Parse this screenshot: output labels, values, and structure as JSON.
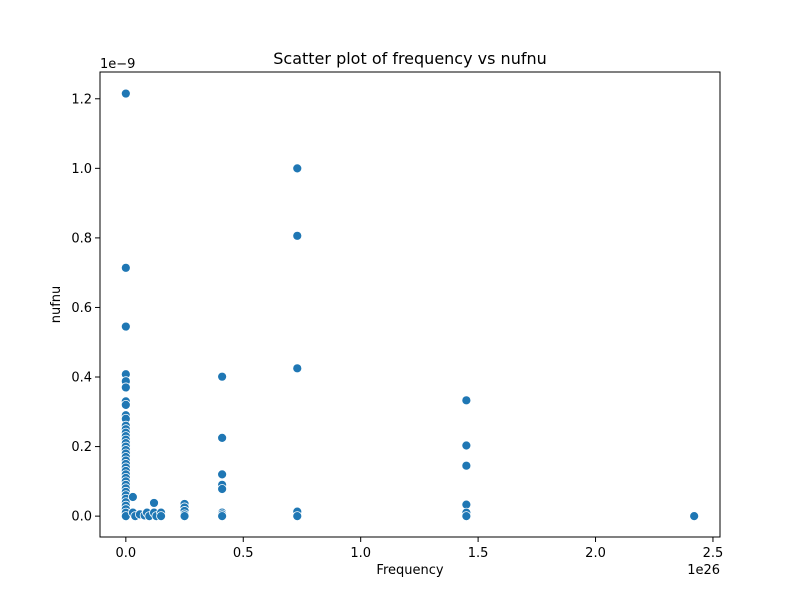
{
  "chart_data": {
    "type": "scatter",
    "title": "Scatter plot of frequency vs nufnu",
    "xlabel": "Frequency",
    "ylabel": "nufnu",
    "x_offset_text": "1e26",
    "y_offset_text": "1e−9",
    "x_scale_exponent": 26,
    "y_scale_exponent": -9,
    "xlim": [
      -0.11,
      2.53
    ],
    "ylim": [
      -0.06,
      1.277
    ],
    "x_ticks": [
      0.0,
      0.5,
      1.0,
      1.5,
      2.0,
      2.5
    ],
    "x_tick_labels": [
      "0.0",
      "0.5",
      "1.0",
      "1.5",
      "2.0",
      "2.5"
    ],
    "y_ticks": [
      0.0,
      0.2,
      0.4,
      0.6,
      0.8,
      1.0,
      1.2
    ],
    "y_tick_labels": [
      "0.0",
      "0.2",
      "0.4",
      "0.6",
      "0.8",
      "1.0",
      "1.2"
    ],
    "grid": false,
    "legend": "none",
    "marker_color": "#1f77b4",
    "marker_edge_color": "#ffffff",
    "points": [
      {
        "x": 0.0,
        "y": 1.215
      },
      {
        "x": 0.0,
        "y": 0.714
      },
      {
        "x": 0.0,
        "y": 0.545
      },
      {
        "x": 0.0,
        "y": 0.408
      },
      {
        "x": 0.0,
        "y": 0.388
      },
      {
        "x": 0.0,
        "y": 0.37
      },
      {
        "x": 0.0,
        "y": 0.33
      },
      {
        "x": 0.0,
        "y": 0.32
      },
      {
        "x": 0.0,
        "y": 0.29
      },
      {
        "x": 0.0,
        "y": 0.28
      },
      {
        "x": 0.0,
        "y": 0.26
      },
      {
        "x": 0.0,
        "y": 0.25
      },
      {
        "x": 0.0,
        "y": 0.24
      },
      {
        "x": 0.0,
        "y": 0.23
      },
      {
        "x": 0.0,
        "y": 0.22
      },
      {
        "x": 0.0,
        "y": 0.21
      },
      {
        "x": 0.0,
        "y": 0.2
      },
      {
        "x": 0.0,
        "y": 0.19
      },
      {
        "x": 0.0,
        "y": 0.18
      },
      {
        "x": 0.0,
        "y": 0.17
      },
      {
        "x": 0.0,
        "y": 0.16
      },
      {
        "x": 0.0,
        "y": 0.15
      },
      {
        "x": 0.0,
        "y": 0.14
      },
      {
        "x": 0.0,
        "y": 0.13
      },
      {
        "x": 0.0,
        "y": 0.12
      },
      {
        "x": 0.0,
        "y": 0.11
      },
      {
        "x": 0.0,
        "y": 0.1
      },
      {
        "x": 0.0,
        "y": 0.09
      },
      {
        "x": 0.0,
        "y": 0.08
      },
      {
        "x": 0.0,
        "y": 0.07
      },
      {
        "x": 0.0,
        "y": 0.06
      },
      {
        "x": 0.0,
        "y": 0.05
      },
      {
        "x": 0.0,
        "y": 0.04
      },
      {
        "x": 0.0,
        "y": 0.03
      },
      {
        "x": 0.0,
        "y": 0.02
      },
      {
        "x": 0.0,
        "y": 0.01
      },
      {
        "x": 0.0,
        "y": 0.0
      },
      {
        "x": 0.03,
        "y": 0.055
      },
      {
        "x": 0.03,
        "y": 0.01
      },
      {
        "x": 0.04,
        "y": 0.0
      },
      {
        "x": 0.06,
        "y": 0.005
      },
      {
        "x": 0.08,
        "y": 0.002
      },
      {
        "x": 0.09,
        "y": 0.01
      },
      {
        "x": 0.1,
        "y": 0.0
      },
      {
        "x": 0.12,
        "y": 0.038
      },
      {
        "x": 0.12,
        "y": 0.01
      },
      {
        "x": 0.13,
        "y": 0.0
      },
      {
        "x": 0.15,
        "y": 0.01
      },
      {
        "x": 0.15,
        "y": 0.0
      },
      {
        "x": 0.25,
        "y": 0.035
      },
      {
        "x": 0.25,
        "y": 0.025
      },
      {
        "x": 0.25,
        "y": 0.015
      },
      {
        "x": 0.25,
        "y": 0.005
      },
      {
        "x": 0.25,
        "y": 0.0
      },
      {
        "x": 0.41,
        "y": 0.401
      },
      {
        "x": 0.41,
        "y": 0.225
      },
      {
        "x": 0.41,
        "y": 0.12
      },
      {
        "x": 0.41,
        "y": 0.09
      },
      {
        "x": 0.41,
        "y": 0.078
      },
      {
        "x": 0.41,
        "y": 0.01
      },
      {
        "x": 0.41,
        "y": 0.005
      },
      {
        "x": 0.41,
        "y": 0.0
      },
      {
        "x": 0.73,
        "y": 1.0
      },
      {
        "x": 0.73,
        "y": 0.806
      },
      {
        "x": 0.73,
        "y": 0.425
      },
      {
        "x": 0.73,
        "y": 0.013
      },
      {
        "x": 0.73,
        "y": 0.0
      },
      {
        "x": 1.45,
        "y": 0.333
      },
      {
        "x": 1.45,
        "y": 0.203
      },
      {
        "x": 1.45,
        "y": 0.145
      },
      {
        "x": 1.45,
        "y": 0.033
      },
      {
        "x": 1.45,
        "y": 0.01
      },
      {
        "x": 1.45,
        "y": 0.0
      },
      {
        "x": 2.42,
        "y": 0.0
      }
    ]
  }
}
